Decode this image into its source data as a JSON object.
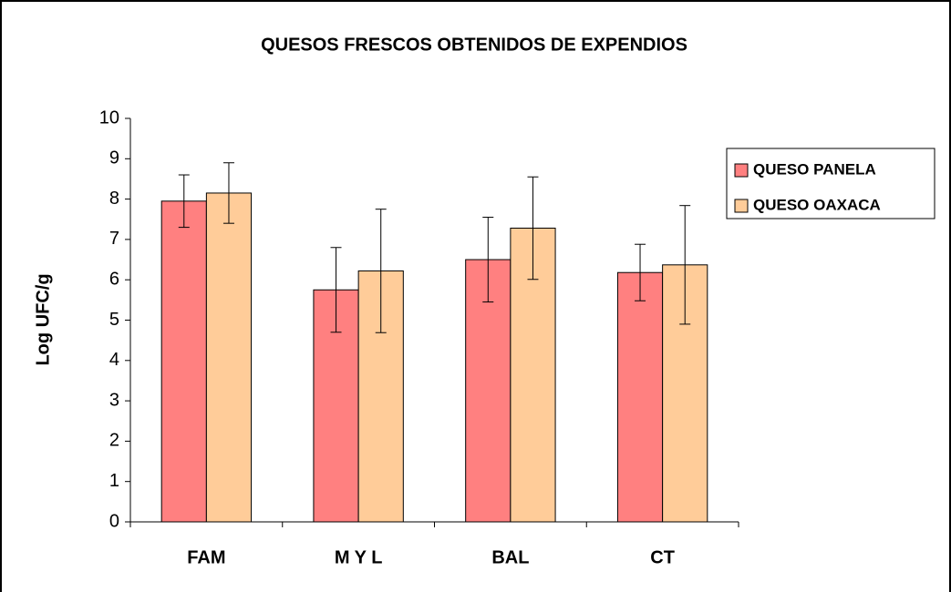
{
  "chart_data": {
    "type": "bar",
    "title": "QUESOS FRESCOS OBTENIDOS  DE EXPENDIOS",
    "ylabel": "Log UFC/g",
    "categories": [
      "FAM",
      "M Y L",
      "BAL",
      "CT"
    ],
    "series": [
      {
        "name": "QUESO PANELA",
        "color": "#ff8080",
        "values": [
          7.95,
          5.75,
          6.5,
          6.18
        ],
        "errors": [
          0.65,
          1.05,
          1.05,
          0.7
        ]
      },
      {
        "name": "QUESO OAXACA",
        "color": "#ffcc99",
        "values": [
          8.15,
          6.22,
          7.28,
          6.37
        ],
        "errors": [
          0.75,
          1.53,
          1.27,
          1.47
        ]
      }
    ],
    "ylim": [
      0,
      10
    ],
    "yticks": [
      0,
      1,
      2,
      3,
      4,
      5,
      6,
      7,
      8,
      9,
      10
    ],
    "grid": false,
    "legend": "right"
  }
}
